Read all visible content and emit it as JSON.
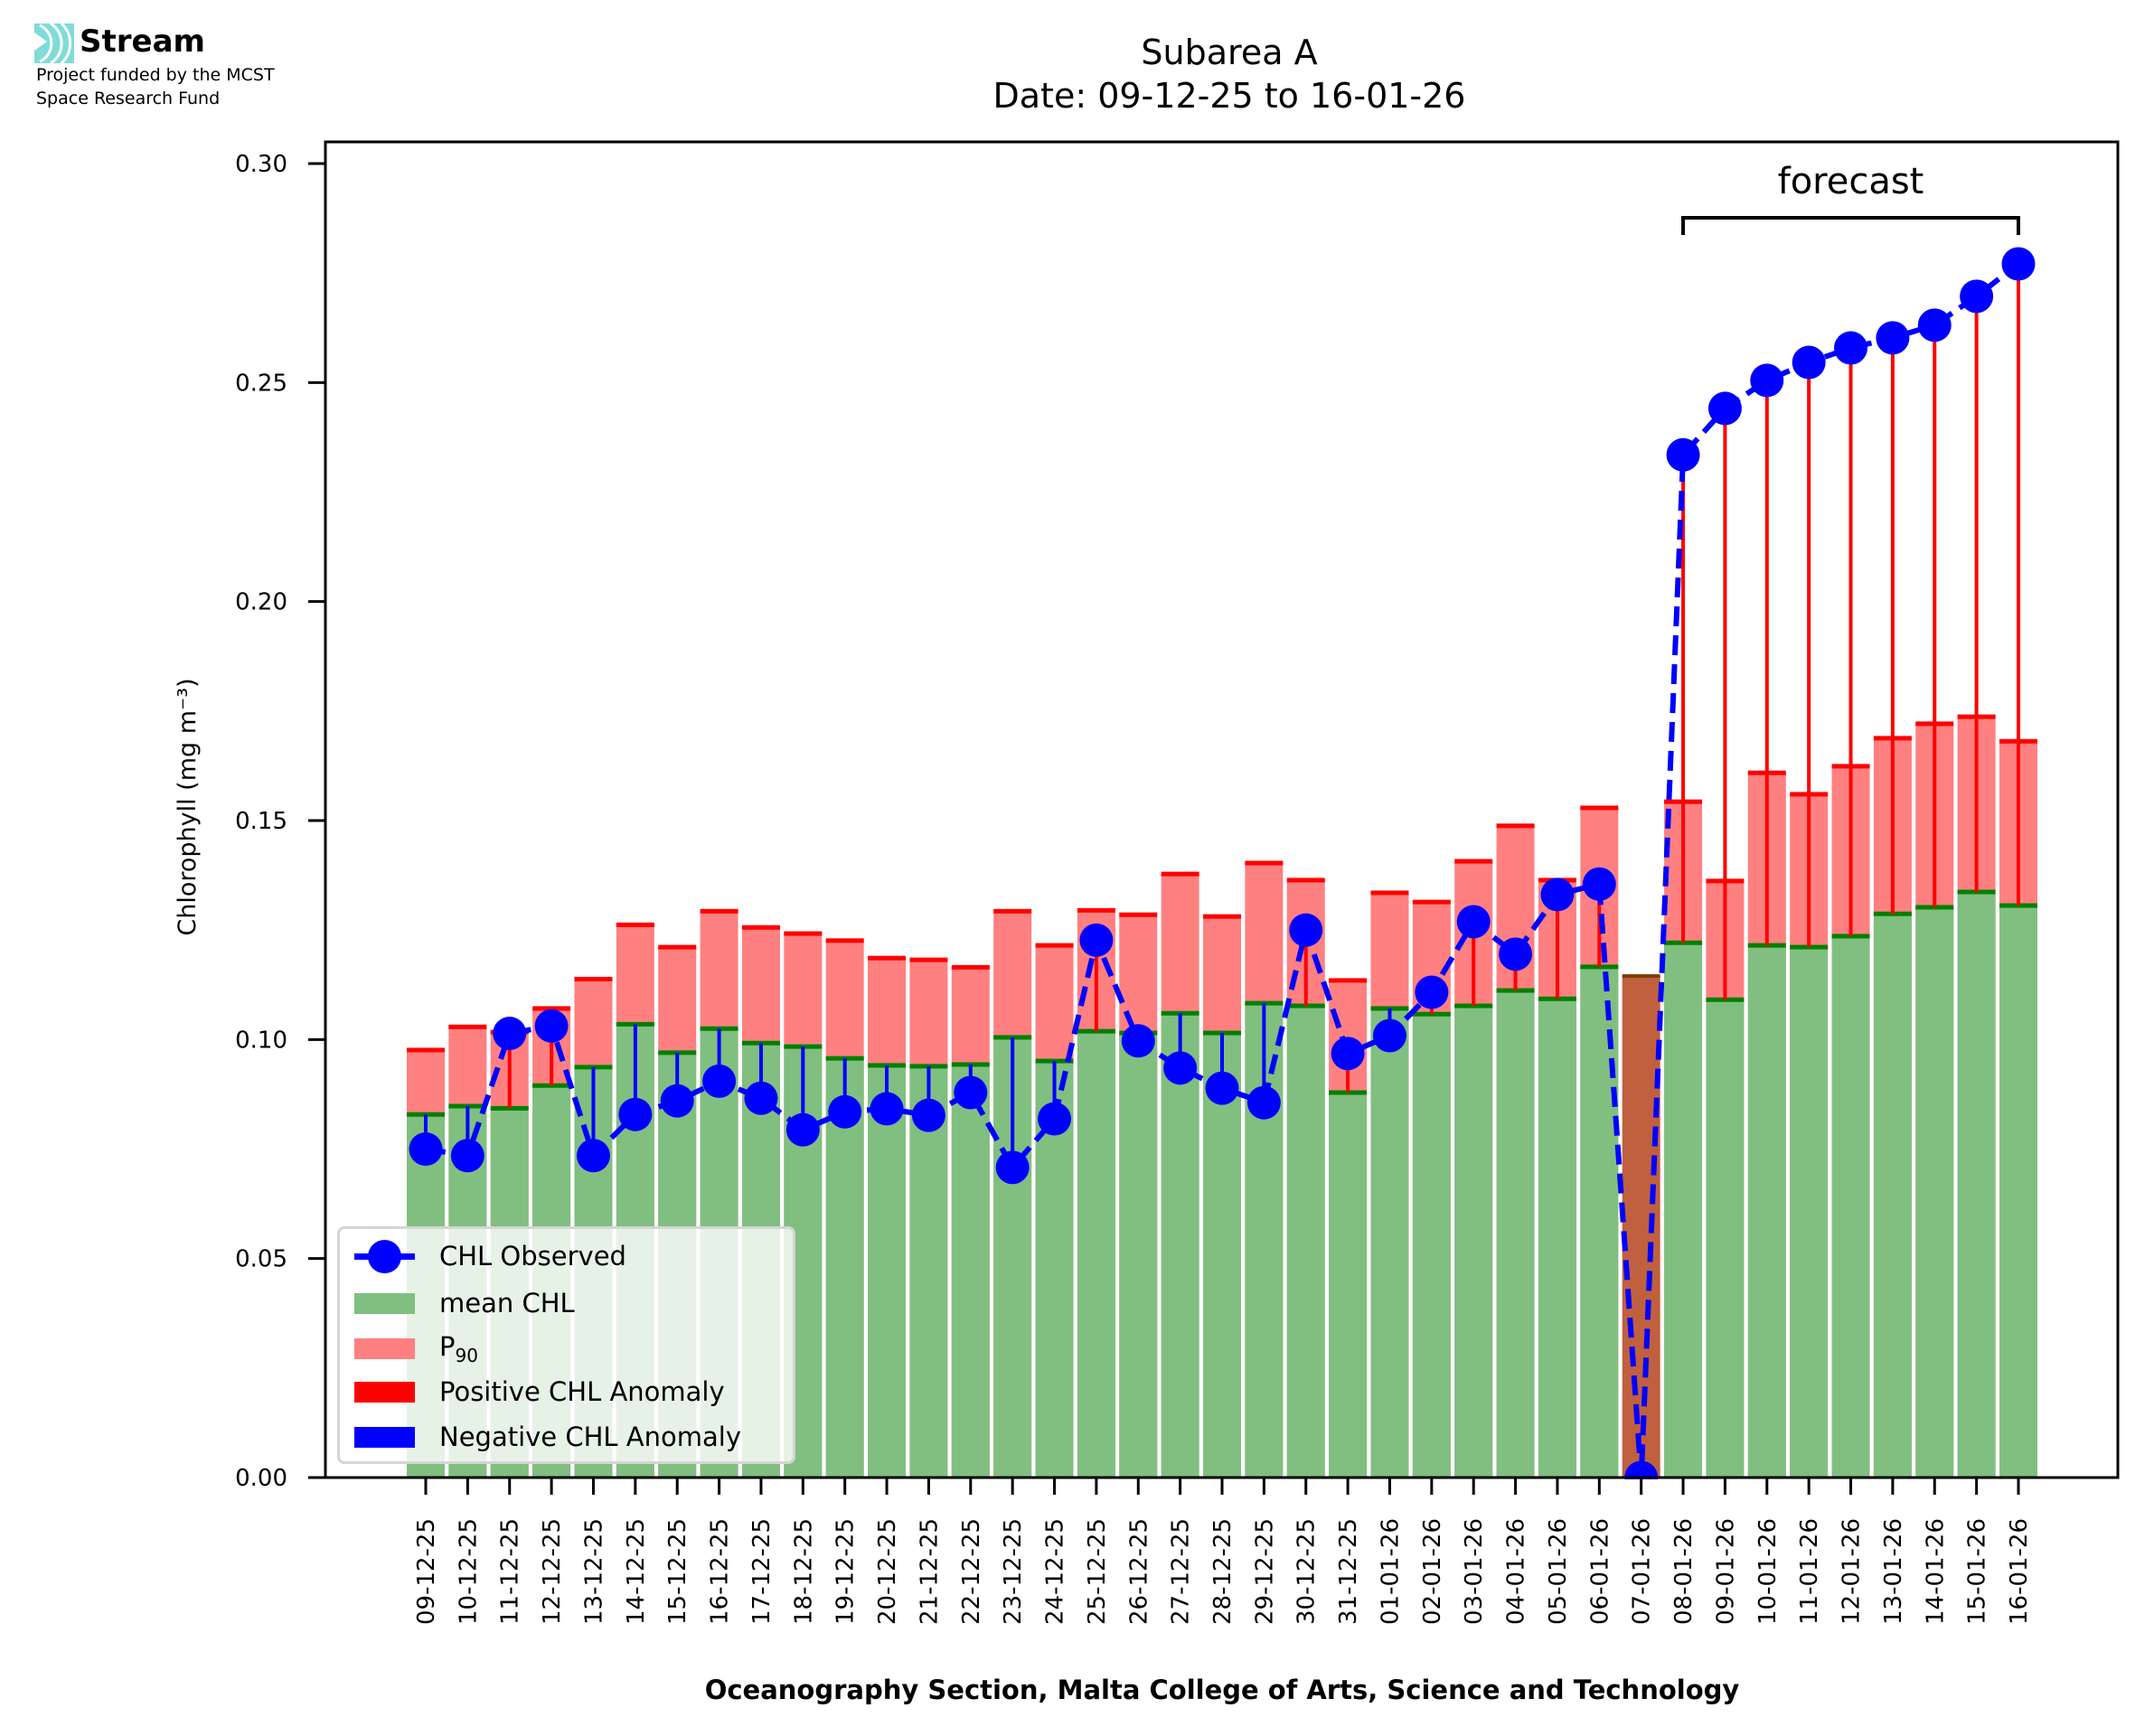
{
  "branding": {
    "logo_name": "Stream",
    "funding_line1": "Project funded by the MCST",
    "funding_line2": "Space Research Fund",
    "logo_icon": "signal-waves-icon",
    "logo_color": "#7fdcd8"
  },
  "chart_data": {
    "type": "bar",
    "title": "Subarea A",
    "subtitle": "Date: 09-12-25 to 16-01-26",
    "xlabel": "Oceanography Section, Malta College of Arts, Science and Technology",
    "ylabel": "Chlorophyll (mg m⁻³)",
    "ylim": [
      0,
      0.305
    ],
    "yticks": [
      "0.00",
      "0.05",
      "0.10",
      "0.15",
      "0.20",
      "0.25",
      "0.30"
    ],
    "ytick_values": [
      0,
      0.05,
      0.1,
      0.15,
      0.2,
      0.25,
      0.3
    ],
    "grid": false,
    "legend_position": "lower-left",
    "categories": [
      "09-12-25",
      "10-12-25",
      "11-12-25",
      "12-12-25",
      "13-12-25",
      "14-12-25",
      "15-12-25",
      "16-12-25",
      "17-12-25",
      "18-12-25",
      "19-12-25",
      "20-12-25",
      "21-12-25",
      "22-12-25",
      "23-12-25",
      "24-12-25",
      "25-12-25",
      "26-12-25",
      "27-12-25",
      "28-12-25",
      "29-12-25",
      "30-12-25",
      "31-12-25",
      "01-01-26",
      "02-01-26",
      "03-01-26",
      "04-01-26",
      "05-01-26",
      "06-01-26",
      "07-01-26",
      "08-01-26",
      "09-01-26",
      "10-01-26",
      "11-01-26",
      "12-01-26",
      "13-01-26",
      "14-01-26",
      "15-01-26",
      "16-01-26"
    ],
    "series": [
      {
        "name": "CHL Observed",
        "kind": "line-marker",
        "color": "#0000ff",
        "values": [
          0.075,
          0.0735,
          0.1014,
          0.1031,
          0.0735,
          0.0829,
          0.086,
          0.0905,
          0.0866,
          0.0794,
          0.0835,
          0.0842,
          0.0827,
          0.0879,
          0.0708,
          0.0819,
          0.1227,
          0.0997,
          0.0935,
          0.0889,
          0.0856,
          0.125,
          0.0968,
          0.1009,
          0.1108,
          0.1269,
          0.1195,
          0.1331,
          0.1355,
          0.0,
          0.2335,
          0.2441,
          0.2505,
          0.2546,
          0.2579,
          0.2602,
          0.2631,
          0.2697,
          0.2771
        ]
      },
      {
        "name": "mean CHL",
        "kind": "bar",
        "color": "#80bf80",
        "edge_color": "#008000",
        "values": [
          0.0829,
          0.0848,
          0.0843,
          0.0895,
          0.0937,
          0.1035,
          0.097,
          0.1025,
          0.0992,
          0.0984,
          0.0957,
          0.0941,
          0.0939,
          0.0943,
          0.1005,
          0.0951,
          0.1019,
          0.1015,
          0.106,
          0.1015,
          0.1083,
          0.1077,
          0.0879,
          0.1071,
          0.1058,
          0.1077,
          0.1112,
          0.1093,
          0.1166,
          0.1145,
          0.1221,
          0.1091,
          0.1215,
          0.1211,
          0.1236,
          0.1287,
          0.1302,
          0.1337,
          0.1306
        ]
      },
      {
        "name": "P90",
        "kind": "bar",
        "color": "#ff8080",
        "edge_color": "#ff0000",
        "values": [
          0.0976,
          0.1029,
          0.1017,
          0.1071,
          0.1138,
          0.1262,
          0.1211,
          0.1293,
          0.1256,
          0.1242,
          0.1226,
          0.1186,
          0.1182,
          0.1165,
          0.1293,
          0.1215,
          0.1295,
          0.1285,
          0.1378,
          0.1281,
          0.1403,
          0.1364,
          0.1135,
          0.1335,
          0.1314,
          0.1407,
          0.1488,
          0.1364,
          0.1529,
          0.1145,
          0.1543,
          0.1362,
          0.1609,
          0.156,
          0.1624,
          0.1688,
          0.1721,
          0.1737,
          0.1681
        ]
      }
    ],
    "anomaly_colors": {
      "positive": "#ff0000",
      "negative": "#0000ff"
    },
    "missing_color": "#c0603f",
    "missing_edge_color": "#7f3f00",
    "annotation": {
      "text": "forecast",
      "from": "08-01-26",
      "to": "16-01-26"
    },
    "legend": [
      {
        "label": "CHL Observed",
        "kind": "line-marker",
        "color": "#0000ff"
      },
      {
        "label": "mean CHL",
        "kind": "patch",
        "color": "#80bf80"
      },
      {
        "label": "P",
        "sub": "90",
        "kind": "patch",
        "color": "#ff8080"
      },
      {
        "label": "Positive CHL Anomaly",
        "kind": "patch",
        "color": "#ff0000"
      },
      {
        "label": "Negative CHL Anomaly",
        "kind": "patch",
        "color": "#0000ff"
      }
    ]
  }
}
